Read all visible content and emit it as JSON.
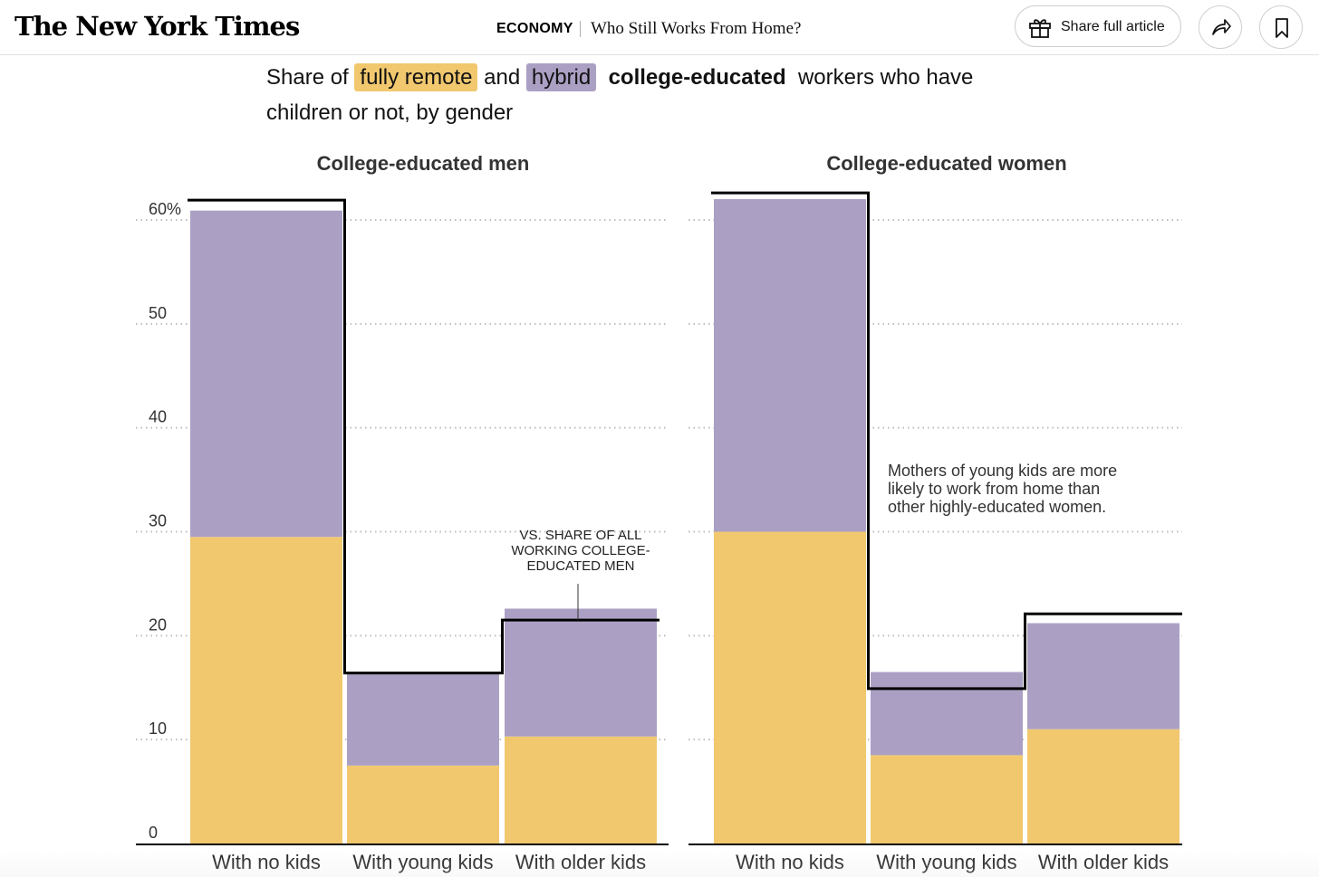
{
  "header": {
    "logo": "The New York Times",
    "section": "ECONOMY",
    "headline": "Who Still Works From Home?",
    "share_label": "Share full article",
    "icons": [
      "gift-icon",
      "share-arrow-icon",
      "bookmark-icon"
    ]
  },
  "subtitle": {
    "prefix": "Share of",
    "remote": "fully remote",
    "and": "and",
    "hybrid": "hybrid",
    "group": "college-educated",
    "suffix": "workers who have children or not, by gender"
  },
  "colors": {
    "remote": "#f2c86f",
    "hybrid": "#aba0c4",
    "benchmark": "#000000",
    "grid": "#bdbdbd"
  },
  "chart_data": [
    {
      "type": "bar",
      "stacked": true,
      "title": "College-educated men",
      "categories": [
        "With no kids",
        "With young kids",
        "With older kids"
      ],
      "series": [
        {
          "name": "fully remote",
          "values": [
            29.5,
            7.5,
            10.3
          ]
        },
        {
          "name": "hybrid",
          "values": [
            31.4,
            8.8,
            12.3
          ]
        }
      ],
      "benchmark": [
        61.9,
        16.4,
        21.5
      ],
      "ylim": [
        0,
        60
      ],
      "yticks": [
        "0",
        "10",
        "20",
        "30",
        "40",
        "50",
        "60%"
      ],
      "annotation": "VS. SHARE OF ALL WORKING COLLEGE-EDUCATED MEN",
      "grid": true
    },
    {
      "type": "bar",
      "stacked": true,
      "title": "College-educated women",
      "categories": [
        "With no kids",
        "With young kids",
        "With older kids"
      ],
      "series": [
        {
          "name": "fully remote",
          "values": [
            30.0,
            8.5,
            11.0
          ]
        },
        {
          "name": "hybrid",
          "values": [
            32.0,
            8.0,
            10.2
          ]
        }
      ],
      "benchmark": [
        62.6,
        14.9,
        22.1
      ],
      "ylim": [
        0,
        60
      ],
      "annotation": "Mothers of young kids are more likely to work from home than other highly-educated women.",
      "grid": true
    }
  ]
}
